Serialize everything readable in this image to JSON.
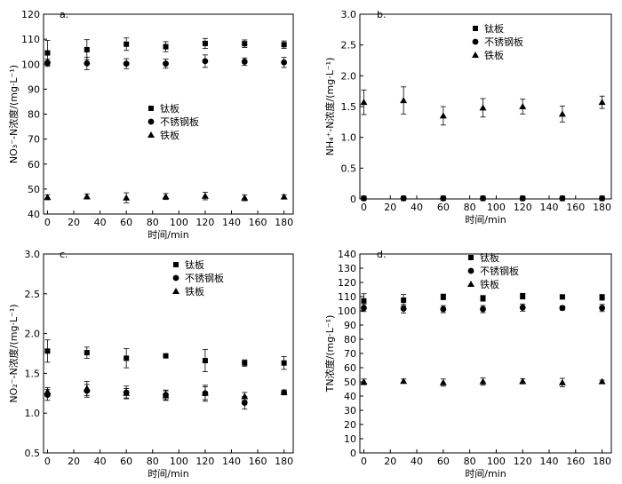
{
  "chart_data": [
    {
      "type": "scatter",
      "panel_label": "a.",
      "xlabel": "时间/min",
      "ylabel": "NO₃⁻-N浓度/(mg·L⁻¹)",
      "xlim": [
        -3,
        187
      ],
      "ylim": [
        40,
        120
      ],
      "xticks": [
        "0",
        "20",
        "40",
        "60",
        "80",
        "100",
        "120",
        "140",
        "160",
        "180"
      ],
      "yticks": [
        "40",
        "50",
        "60",
        "70",
        "80",
        "90",
        "100",
        "110",
        "120"
      ],
      "legend_position": "center",
      "x": [
        0,
        30,
        60,
        90,
        120,
        150,
        180
      ],
      "series": [
        {
          "name": "钛板",
          "marker": "square",
          "values": [
            104.5,
            105.8,
            108.0,
            107.0,
            108.3,
            108.2,
            107.8
          ],
          "errors": [
            5.0,
            4.0,
            2.5,
            2.0,
            2.0,
            1.5,
            1.5
          ]
        },
        {
          "name": "不锈钢板",
          "marker": "circle",
          "values": [
            100.6,
            100.3,
            100.2,
            100.2,
            101.2,
            101.0,
            100.7
          ],
          "errors": [
            1.5,
            2.5,
            2.0,
            1.8,
            2.5,
            1.5,
            2.0
          ]
        },
        {
          "name": "铁板",
          "marker": "triangle",
          "values": [
            46.7,
            47.0,
            46.5,
            47.0,
            47.2,
            46.5,
            46.9
          ],
          "errors": [
            1.0,
            1.0,
            2.0,
            1.2,
            1.5,
            1.2,
            0.8
          ]
        }
      ]
    },
    {
      "type": "scatter",
      "panel_label": "b.",
      "xlabel": "时间/min",
      "ylabel": "NH₄⁺-N浓度/(mg·L⁻¹)",
      "xlim": [
        -3,
        187
      ],
      "ylim": [
        0,
        3.0
      ],
      "xticks": [
        "0",
        "20",
        "40",
        "60",
        "80",
        "100",
        "120",
        "140",
        "160",
        "180"
      ],
      "yticks": [
        "0",
        "0.5",
        "1.0",
        "1.5",
        "2.0",
        "2.5",
        "3.0"
      ],
      "legend_position": "top-right",
      "x": [
        0,
        30,
        60,
        90,
        120,
        150,
        180
      ],
      "series": [
        {
          "name": "钛板",
          "marker": "square",
          "values": [
            0.01,
            0.01,
            0.01,
            0.01,
            0.01,
            0.01,
            0.01
          ],
          "errors": [
            0.01,
            0.01,
            0.01,
            0.01,
            0.01,
            0.01,
            0.01
          ]
        },
        {
          "name": "不锈钢板",
          "marker": "circle",
          "values": [
            0.01,
            0.01,
            0.01,
            0.01,
            0.01,
            0.01,
            0.01
          ],
          "errors": [
            0.01,
            0.01,
            0.01,
            0.01,
            0.01,
            0.01,
            0.01
          ]
        },
        {
          "name": "铁板",
          "marker": "triangle",
          "values": [
            1.57,
            1.6,
            1.35,
            1.48,
            1.5,
            1.38,
            1.57
          ],
          "errors": [
            0.2,
            0.22,
            0.15,
            0.15,
            0.12,
            0.13,
            0.1
          ]
        }
      ]
    },
    {
      "type": "scatter",
      "panel_label": "c.",
      "xlabel": "时间/min",
      "ylabel": "NO₂⁻-N浓度/(mg·L⁻¹)",
      "xlim": [
        -3,
        187
      ],
      "ylim": [
        0.5,
        3.0
      ],
      "xticks": [
        "0",
        "20",
        "40",
        "60",
        "80",
        "100",
        "120",
        "140",
        "160",
        "180"
      ],
      "yticks": [
        "0.5",
        "1.0",
        "1.5",
        "2.0",
        "2.5",
        "3.0"
      ],
      "legend_position": "top-right",
      "x": [
        0,
        30,
        60,
        90,
        120,
        150,
        180
      ],
      "series": [
        {
          "name": "钛板",
          "marker": "square",
          "values": [
            1.78,
            1.76,
            1.69,
            1.72,
            1.66,
            1.63,
            1.63
          ],
          "errors": [
            0.14,
            0.07,
            0.12,
            0.0,
            0.14,
            0.04,
            0.08
          ]
        },
        {
          "name": "不锈钢板",
          "marker": "circle",
          "values": [
            1.23,
            1.28,
            1.26,
            1.23,
            1.25,
            1.13,
            1.26
          ],
          "errors": [
            0.07,
            0.08,
            0.08,
            0.06,
            0.1,
            0.08,
            0.03
          ]
        },
        {
          "name": "铁板",
          "marker": "triangle",
          "values": [
            1.27,
            1.31,
            1.25,
            1.22,
            1.25,
            1.21,
            1.26
          ],
          "errors": [
            0.05,
            0.09,
            0.06,
            0.06,
            0.08,
            0.05,
            0.03
          ]
        }
      ]
    },
    {
      "type": "scatter",
      "panel_label": "d.",
      "xlabel": "时间/min",
      "ylabel": "TN浓度/(mg·L⁻¹)",
      "xlim": [
        -3,
        187
      ],
      "ylim": [
        0,
        140
      ],
      "xticks": [
        "0",
        "20",
        "40",
        "60",
        "80",
        "100",
        "120",
        "140",
        "160",
        "180"
      ],
      "yticks": [
        "0",
        "10",
        "20",
        "30",
        "40",
        "50",
        "60",
        "70",
        "80",
        "90",
        "100",
        "110",
        "120",
        "130",
        "140"
      ],
      "legend_position": "top-right",
      "x": [
        0,
        30,
        60,
        90,
        120,
        150,
        180
      ],
      "series": [
        {
          "name": "钛板",
          "marker": "square",
          "values": [
            107.0,
            107.5,
            109.8,
            108.8,
            110.3,
            109.8,
            109.5
          ],
          "errors": [
            5.0,
            4.0,
            2.0,
            2.0,
            2.0,
            1.5,
            2.0
          ]
        },
        {
          "name": "不锈钢板",
          "marker": "circle",
          "values": [
            102.0,
            101.5,
            101.2,
            101.2,
            102.3,
            102.0,
            102.0
          ],
          "errors": [
            2.5,
            3.0,
            2.5,
            2.5,
            2.5,
            1.5,
            2.5
          ]
        },
        {
          "name": "铁板",
          "marker": "triangle",
          "values": [
            50.0,
            50.5,
            49.5,
            50.2,
            50.4,
            49.5,
            50.2
          ],
          "errors": [
            2.0,
            1.5,
            2.5,
            2.5,
            1.8,
            3.0,
            1.0
          ]
        }
      ]
    }
  ]
}
